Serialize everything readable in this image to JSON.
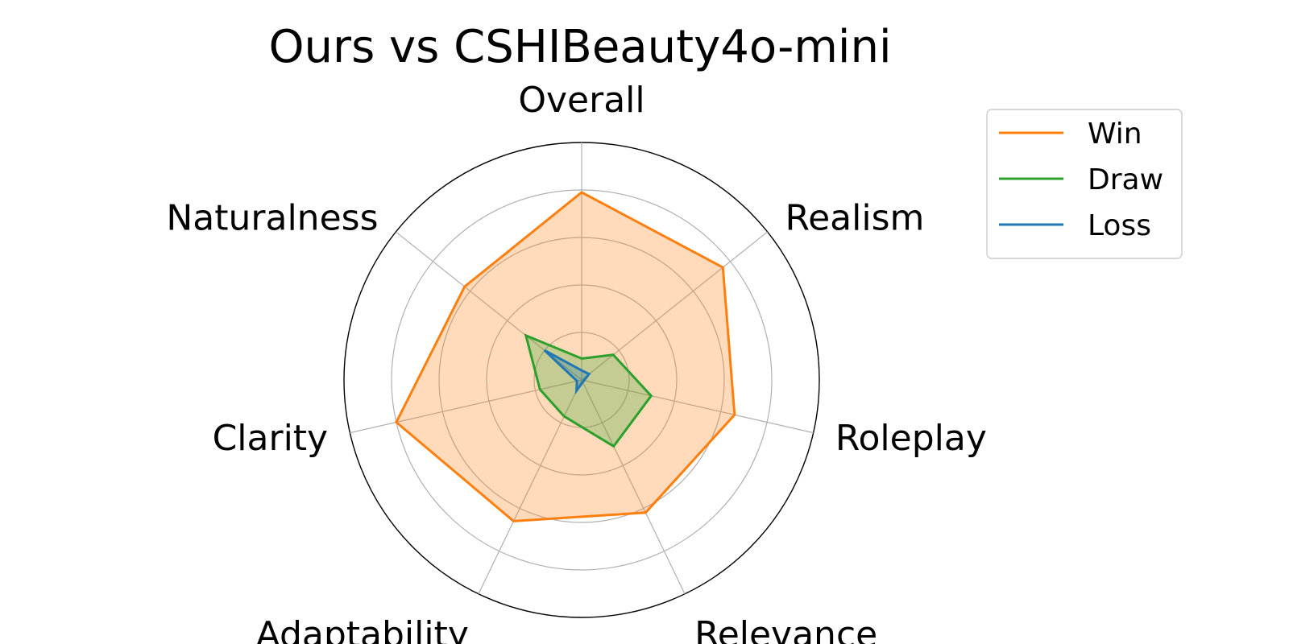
{
  "chart_data": {
    "type": "radar",
    "title": "Ours vs CSHIBeauty4o-mini",
    "categories": [
      "Overall",
      "Realism",
      "Roleplay",
      "Relevance",
      "Adaptability",
      "Clarity",
      "Naturalness"
    ],
    "rlim": [
      0,
      100
    ],
    "grid": true,
    "grid_values": [
      20,
      40,
      60,
      80,
      100
    ],
    "legend_position": "top-right",
    "series": [
      {
        "name": "Win",
        "color": "#ff7f0e",
        "fill_opacity": 0.28,
        "values": [
          79,
          76,
          66,
          62,
          66,
          80,
          63
        ]
      },
      {
        "name": "Draw",
        "color": "#2ca02c",
        "fill_opacity": 0.28,
        "values": [
          9,
          17,
          30,
          31,
          17,
          18,
          30
        ]
      },
      {
        "name": "Loss",
        "color": "#1f77b4",
        "fill_opacity": 0.28,
        "values": [
          4,
          4,
          1,
          1,
          5,
          2,
          20
        ]
      }
    ]
  }
}
